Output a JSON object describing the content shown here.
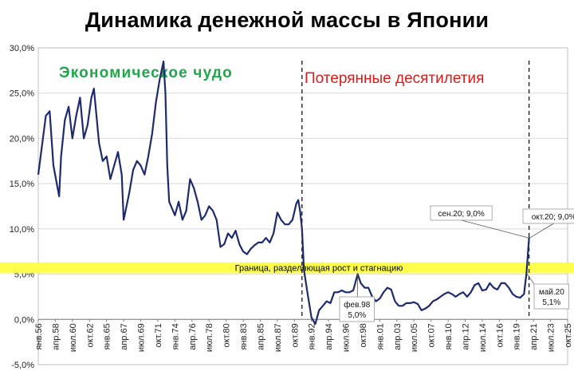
{
  "chart_data": {
    "type": "line",
    "title": "Динамика денежной массы в Японии",
    "xlabel": "",
    "ylabel": "",
    "ylim": [
      -5,
      30
    ],
    "xlim": [
      "янв.56",
      "окт.25"
    ],
    "y_ticks": [
      "-5,0%",
      "0,0%",
      "5,0%",
      "10,0%",
      "15,0%",
      "20,0%",
      "25,0%",
      "30,0%"
    ],
    "y_tick_values": [
      -5,
      0,
      5,
      10,
      15,
      20,
      25,
      30
    ],
    "x_ticks": [
      "янв.56",
      "апр.58",
      "июл.60",
      "окт.62",
      "янв.65",
      "апр.67",
      "июл.69",
      "окт.71",
      "янв.74",
      "апр.76",
      "июл.78",
      "окт.80",
      "янв.83",
      "апр.85",
      "июл.87",
      "окт.89",
      "янв.92",
      "апр.94",
      "июл.96",
      "окт.98",
      "янв.01",
      "апр.03",
      "июл.05",
      "окт.07",
      "янв.10",
      "апр.12",
      "июл.14",
      "окт.16",
      "янв.19",
      "апр.21",
      "июл.23",
      "окт.25"
    ],
    "grid": "horizontal",
    "line_color": "#1f2a6e",
    "band": {
      "y": [
        5.1,
        6.3
      ],
      "label": "Граница,  разделяющая  рост  и  стагнацию",
      "color": "#ffff4d"
    },
    "periods": [
      {
        "label": "Экономическое чудо",
        "color": "#1fa64a"
      },
      {
        "label": "Потерянные десятилетия",
        "color": "#e01a1a"
      }
    ],
    "dividers": [
      "окт.90",
      "сен.20"
    ],
    "annotations": [
      {
        "text": "сен.20; 9,0%",
        "x": "сен.20",
        "y": 9.0
      },
      {
        "text": "окт.20; 9,0%",
        "x": "окт.20",
        "y": 9.0
      },
      {
        "text": "фев.98\n5,0%",
        "x": "фев.98",
        "y": 5.0
      },
      {
        "text": "май.20\n5,1%",
        "x": "май.20",
        "y": 5.1
      }
    ],
    "series": [
      {
        "values": [
          [
            "янв.56",
            16.0
          ],
          [
            "янв.57",
            22.5
          ],
          [
            "июл.57",
            23.0
          ],
          [
            "янв.58",
            17.0
          ],
          [
            "окт.58",
            13.6
          ],
          [
            "янв.59",
            18.0
          ],
          [
            "июл.59",
            22.0
          ],
          [
            "янв.60",
            23.5
          ],
          [
            "июл.60",
            20.0
          ],
          [
            "янв.61",
            22.5
          ],
          [
            "июл.61",
            24.5
          ],
          [
            "янв.62",
            20.0
          ],
          [
            "июл.62",
            21.5
          ],
          [
            "янв.63",
            24.5
          ],
          [
            "май.63",
            25.5
          ],
          [
            "янв.64",
            19.5
          ],
          [
            "июл.64",
            17.5
          ],
          [
            "янв.65",
            18.0
          ],
          [
            "июл.65",
            15.5
          ],
          [
            "янв.66",
            17.0
          ],
          [
            "июл.66",
            18.5
          ],
          [
            "янв.67",
            16.0
          ],
          [
            "апр.67",
            11.0
          ],
          [
            "июл.67",
            12.0
          ],
          [
            "янв.68",
            14.0
          ],
          [
            "июл.68",
            16.5
          ],
          [
            "янв.69",
            17.5
          ],
          [
            "июл.69",
            17.0
          ],
          [
            "янв.70",
            16.0
          ],
          [
            "июл.70",
            18.0
          ],
          [
            "янв.71",
            20.5
          ],
          [
            "июл.71",
            24.0
          ],
          [
            "янв.72",
            26.5
          ],
          [
            "июл.72",
            28.5
          ],
          [
            "окт.72",
            25.0
          ],
          [
            "янв.73",
            17.0
          ],
          [
            "апр.73",
            13.0
          ],
          [
            "янв.74",
            11.5
          ],
          [
            "июл.74",
            13.0
          ],
          [
            "янв.75",
            11.0
          ],
          [
            "июл.75",
            12.0
          ],
          [
            "янв.76",
            15.5
          ],
          [
            "июл.76",
            14.5
          ],
          [
            "янв.77",
            13.0
          ],
          [
            "июл.77",
            11.0
          ],
          [
            "янв.78",
            11.5
          ],
          [
            "июл.78",
            12.5
          ],
          [
            "янв.79",
            12.0
          ],
          [
            "июл.79",
            11.0
          ],
          [
            "янв.80",
            8.0
          ],
          [
            "июл.80",
            8.3
          ],
          [
            "янв.81",
            9.5
          ],
          [
            "июл.81",
            9.0
          ],
          [
            "янв.82",
            9.8
          ],
          [
            "июл.82",
            8.3
          ],
          [
            "янв.83",
            7.5
          ],
          [
            "июл.83",
            7.2
          ],
          [
            "янв.84",
            7.8
          ],
          [
            "июл.84",
            8.2
          ],
          [
            "янв.85",
            8.5
          ],
          [
            "июл.85",
            8.5
          ],
          [
            "янв.86",
            9.0
          ],
          [
            "июл.86",
            8.5
          ],
          [
            "янв.87",
            9.5
          ],
          [
            "июл.87",
            11.8
          ],
          [
            "янв.88",
            11.0
          ],
          [
            "июл.88",
            10.5
          ],
          [
            "янв.89",
            10.5
          ],
          [
            "июл.89",
            11.0
          ],
          [
            "янв.90",
            12.8
          ],
          [
            "апр.90",
            13.2
          ],
          [
            "июл.90",
            12.0
          ],
          [
            "окт.90",
            10.0
          ],
          [
            "янв.91",
            5.5
          ],
          [
            "июл.91",
            2.8
          ],
          [
            "янв.92",
            0.2
          ],
          [
            "июл.92",
            -0.5
          ],
          [
            "янв.93",
            1.0
          ],
          [
            "июл.93",
            1.5
          ],
          [
            "янв.94",
            2.0
          ],
          [
            "июл.94",
            1.8
          ],
          [
            "янв.95",
            3.0
          ],
          [
            "июл.95",
            3.0
          ],
          [
            "янв.96",
            3.2
          ],
          [
            "июл.96",
            3.0
          ],
          [
            "янв.97",
            3.0
          ],
          [
            "июл.97",
            3.2
          ],
          [
            "фев.98",
            5.0
          ],
          [
            "июл.98",
            4.0
          ],
          [
            "янв.99",
            3.5
          ],
          [
            "июл.99",
            3.5
          ],
          [
            "янв.00",
            2.5
          ],
          [
            "июл.00",
            2.0
          ],
          [
            "янв.01",
            2.3
          ],
          [
            "июл.01",
            3.0
          ],
          [
            "янв.02",
            3.5
          ],
          [
            "июл.02",
            3.3
          ],
          [
            "янв.03",
            2.0
          ],
          [
            "июл.03",
            1.5
          ],
          [
            "янв.04",
            1.5
          ],
          [
            "июл.04",
            1.8
          ],
          [
            "янв.05",
            1.8
          ],
          [
            "июл.05",
            1.9
          ],
          [
            "янв.06",
            1.7
          ],
          [
            "июл.06",
            1.0
          ],
          [
            "янв.07",
            1.2
          ],
          [
            "июл.07",
            1.5
          ],
          [
            "янв.08",
            2.0
          ],
          [
            "июл.08",
            2.2
          ],
          [
            "янв.09",
            2.5
          ],
          [
            "июл.09",
            2.8
          ],
          [
            "янв.10",
            3.0
          ],
          [
            "июл.10",
            2.8
          ],
          [
            "янв.11",
            2.5
          ],
          [
            "июл.11",
            2.8
          ],
          [
            "янв.12",
            3.0
          ],
          [
            "июл.12",
            2.5
          ],
          [
            "янв.13",
            3.0
          ],
          [
            "июл.13",
            3.8
          ],
          [
            "янв.14",
            4.0
          ],
          [
            "июл.14",
            3.2
          ],
          [
            "янв.15",
            3.3
          ],
          [
            "июл.15",
            4.0
          ],
          [
            "янв.16",
            3.5
          ],
          [
            "июл.16",
            3.3
          ],
          [
            "янв.17",
            4.0
          ],
          [
            "июл.17",
            4.0
          ],
          [
            "янв.18",
            3.5
          ],
          [
            "июл.18",
            2.8
          ],
          [
            "янв.19",
            2.5
          ],
          [
            "июл.19",
            2.4
          ],
          [
            "янв.20",
            2.8
          ],
          [
            "май.20",
            5.1
          ],
          [
            "сен.20",
            9.0
          ],
          [
            "окт.20",
            9.0
          ]
        ]
      }
    ]
  }
}
